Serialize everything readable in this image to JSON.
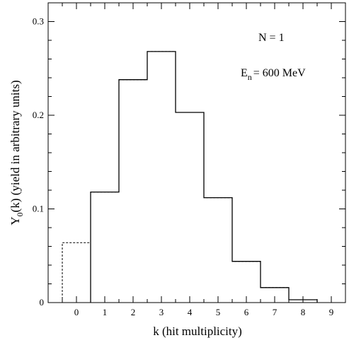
{
  "chart_data": {
    "type": "step-histogram",
    "xlabel": "k  (hit multiplicity)",
    "ylabel_main": "Y",
    "ylabel_sub": "0",
    "ylabel_rest": "(k)  (yield in arbitrary units)",
    "xlim": [
      -1,
      9.5
    ],
    "ylim": [
      0,
      0.32
    ],
    "x_ticks": [
      0,
      1,
      2,
      3,
      4,
      5,
      6,
      7,
      8,
      9
    ],
    "y_ticks": [
      0,
      0.1,
      0.2,
      0.3
    ],
    "x_tick_labels": [
      "0",
      "1",
      "2",
      "3",
      "4",
      "5",
      "6",
      "7",
      "8",
      "9"
    ],
    "y_tick_labels": [
      "0",
      "0.1",
      "0.2",
      "0.3"
    ],
    "bin_width": 1,
    "annotations": {
      "n_label": "N = 1",
      "e_main": "E",
      "e_sub": "n",
      "e_rest": "= 600 MeV"
    },
    "series": [
      {
        "style": "solid",
        "k": [
          1,
          2,
          3,
          4,
          5,
          6,
          7,
          8
        ],
        "values": [
          0.118,
          0.238,
          0.268,
          0.203,
          0.112,
          0.044,
          0.016,
          0.003
        ]
      },
      {
        "style": "dashed",
        "k": [
          0,
          1,
          2,
          3,
          4,
          5,
          6,
          7,
          8
        ],
        "values": [
          0.064,
          0.118,
          0.238,
          0.268,
          0.203,
          0.112,
          0.044,
          0.016,
          0.003
        ]
      }
    ]
  }
}
